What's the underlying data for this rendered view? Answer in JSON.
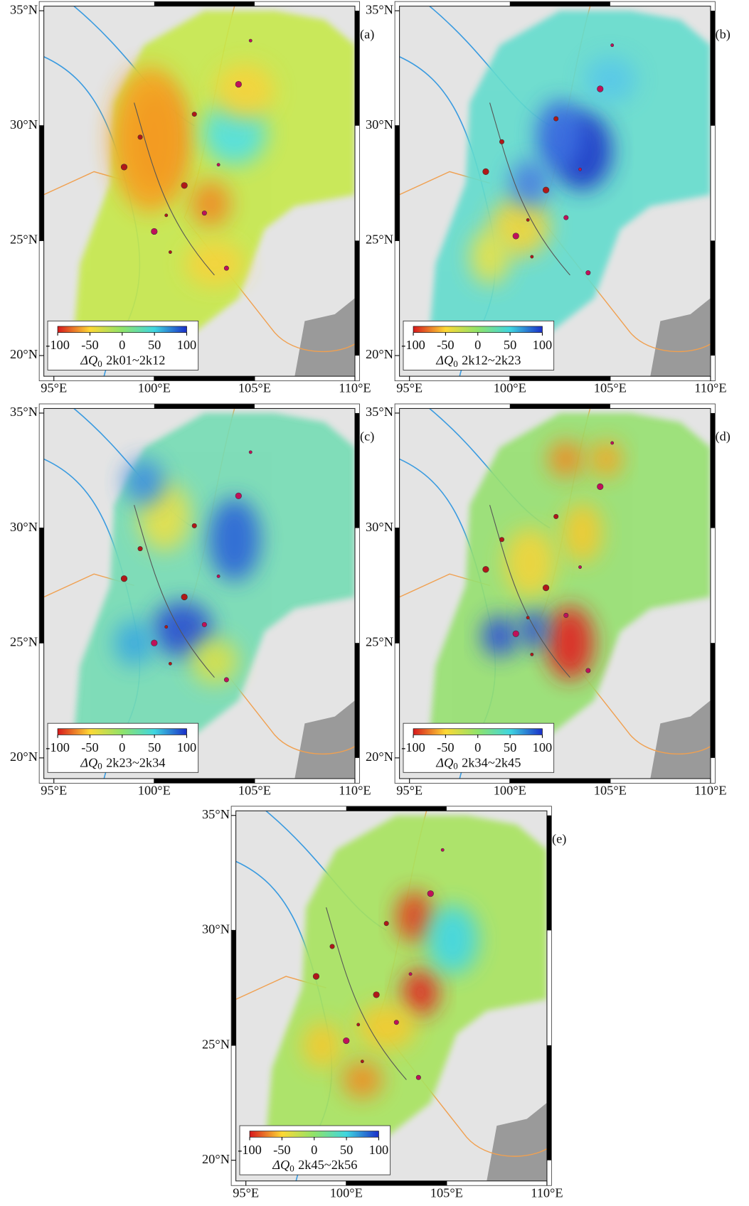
{
  "lonlim": [
    94.5,
    110
  ],
  "latlim": [
    19.1,
    35.2
  ],
  "lat_ticks": [
    {
      "value": 35,
      "label": "35°N"
    },
    {
      "value": 30,
      "label": "30°N"
    },
    {
      "value": 25,
      "label": "25°N"
    },
    {
      "value": 20,
      "label": "20°N"
    }
  ],
  "lon_ticks": [
    {
      "value": 95,
      "label": "95°E"
    },
    {
      "value": 100,
      "label": "100°E"
    },
    {
      "value": 105,
      "label": "105°E"
    },
    {
      "value": 110,
      "label": "110°E"
    }
  ],
  "colorbar": {
    "ticks": [
      -100,
      -50,
      0,
      50,
      100
    ],
    "symbol": "ΔQ",
    "subscript": "0"
  },
  "panels": [
    {
      "label": "(a)",
      "period": "2k01~2k12"
    },
    {
      "label": "(b)",
      "period": "2k12~2k23"
    },
    {
      "label": "(c)",
      "period": "2k23~2k34"
    },
    {
      "label": "(d)",
      "period": "2k34~2k45"
    },
    {
      "label": "(e)",
      "period": "2k45~2k56"
    }
  ]
}
